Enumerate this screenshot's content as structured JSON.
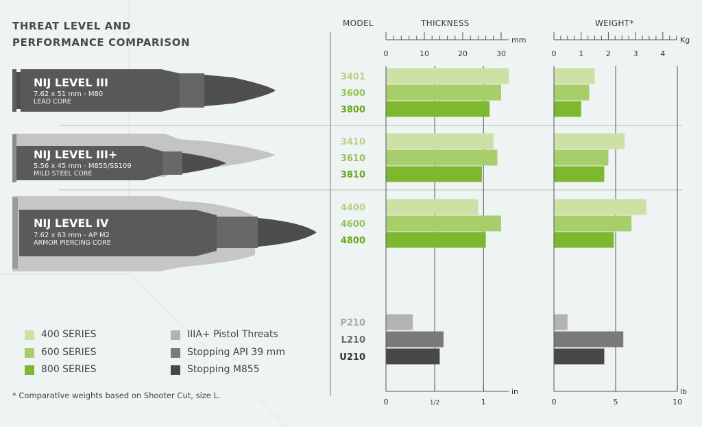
{
  "title": [
    "THREAT LEVEL AND",
    "PERFORMANCE COMPARISON"
  ],
  "headers": {
    "model": "MODEL",
    "thickness": "THICKNESS",
    "weight": "WEIGHT*"
  },
  "threats": [
    {
      "level": "NIJ LEVEL III",
      "caliber": "7.62 x 51 mm - M80",
      "core": "LEAD CORE"
    },
    {
      "level": "NIJ LEVEL III+",
      "caliber": "5.56 x 45 mm - M855/SS109",
      "core": "MILD STEEL CORE"
    },
    {
      "level": "NIJ LEVEL IV",
      "caliber": "7.62 x 63 mm - AP M2",
      "core": "ARMOR PIERCING CORE"
    }
  ],
  "legend": [
    {
      "label": "400 SERIES",
      "color": "#cde0a6"
    },
    {
      "label": "600 SERIES",
      "color": "#a8cd6b"
    },
    {
      "label": "800 SERIES",
      "color": "#7db82e"
    },
    {
      "label": "IIIA+ Pistol Threats",
      "color": "#b3b3b3"
    },
    {
      "label": "Stopping API 39 mm",
      "color": "#7a7a7a"
    },
    {
      "label": "Stopping M855",
      "color": "#484848"
    }
  ],
  "footnote": "* Comparative weights based on Shooter Cut, size L.",
  "chart_data": [
    {
      "type": "bar",
      "orientation": "horizontal",
      "title": "THICKNESS",
      "categories": [
        "3401",
        "3600",
        "3800",
        "3410",
        "3610",
        "3810",
        "4400",
        "4600",
        "4800",
        "P210",
        "L210",
        "U210"
      ],
      "values": [
        32,
        30,
        27,
        28,
        29,
        25,
        24,
        30,
        26,
        7,
        15,
        14
      ],
      "xlim": [
        0,
        32
      ],
      "top_axis": {
        "unit": "mm",
        "ticks": [
          "0",
          "10",
          "20",
          "30"
        ],
        "tick_values": [
          0,
          10,
          20,
          30
        ]
      },
      "bottom_axis": {
        "unit": "in",
        "ticks": [
          "0",
          "1/2",
          "1"
        ],
        "tick_values": [
          0,
          12.7,
          25.4
        ]
      }
    },
    {
      "type": "bar",
      "orientation": "horizontal",
      "title": "WEIGHT*",
      "categories": [
        "3401",
        "3600",
        "3800",
        "3410",
        "3610",
        "3810",
        "4400",
        "4600",
        "4800",
        "P210",
        "L210",
        "U210"
      ],
      "values": [
        1.5,
        1.3,
        1.0,
        2.6,
        2.0,
        1.85,
        3.4,
        2.85,
        2.2,
        0.5,
        2.55,
        1.85
      ],
      "xlim": [
        0,
        4.5
      ],
      "top_axis": {
        "unit": "Kg",
        "ticks": [
          "0",
          "1",
          "2",
          "3",
          "4"
        ],
        "tick_values": [
          0,
          1,
          2,
          3,
          4
        ]
      },
      "bottom_axis": {
        "unit": "lb",
        "ticks": [
          "0",
          "5",
          "10"
        ],
        "tick_values": [
          0,
          2.268,
          4.536
        ]
      }
    }
  ],
  "bar_colors": [
    "#cde0a6",
    "#a8cd6b",
    "#7db82e",
    "#cde0a6",
    "#a8cd6b",
    "#7db82e",
    "#cde0a6",
    "#a8cd6b",
    "#7db82e",
    "#b3b3b3",
    "#7a7a7a",
    "#484848"
  ],
  "label_colors": [
    "#b8d28a",
    "#98c256",
    "#6aaa1e",
    "#b8d28a",
    "#98c256",
    "#6aaa1e",
    "#b8d28a",
    "#98c256",
    "#6aaa1e",
    "#a8a8a8",
    "#6a6a6a",
    "#333333"
  ]
}
